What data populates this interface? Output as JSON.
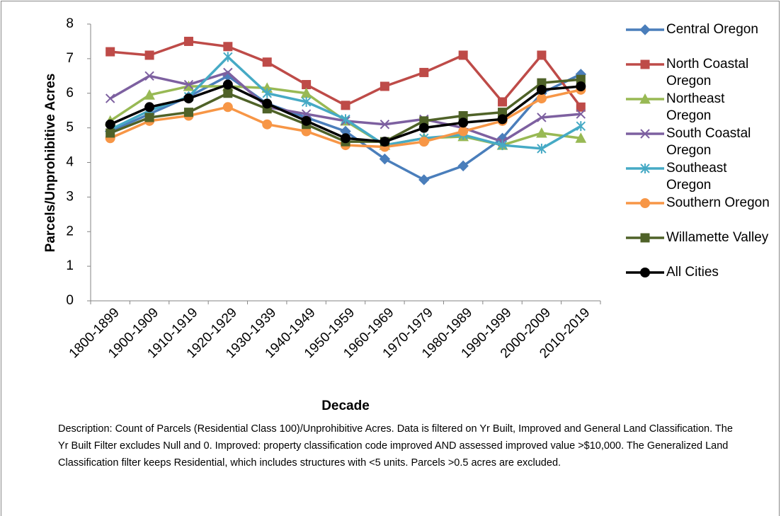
{
  "chart_data": {
    "type": "line",
    "ylabel": "Parcels/Unprohibitive Acres",
    "xlabel": "Decade",
    "note": "Description: Count of Parcels (Residential Class 100)/Unprohibitive Acres. Data is filtered on Yr Built, Improved and General Land Classification. The Yr Built Filter excludes Null and 0.  Improved: property classification code improved AND assessed improved value >$10,000.  The Generalized Land Classification filter keeps Residential, which includes structures with <5 units.  Parcels >0.5 acres are excluded.",
    "categories": [
      "1800-1899",
      "1900-1909",
      "1910-1919",
      "1920-1929",
      "1930-1939",
      "1940-1949",
      "1950-1959",
      "1960-1969",
      "1970-1979",
      "1980-1989",
      "1990-1999",
      "2000-2009",
      "2010-2019"
    ],
    "ylim": [
      0,
      8
    ],
    "yticks": [
      0,
      1,
      2,
      3,
      4,
      5,
      6,
      7,
      8
    ],
    "legend": "right",
    "series": [
      {
        "name": "Central Oregon",
        "color": "#4a7ebb",
        "marker": "diamond",
        "values": [
          4.9,
          5.4,
          5.9,
          6.5,
          5.7,
          5.3,
          4.9,
          4.1,
          3.5,
          3.9,
          4.7,
          6.0,
          6.55
        ]
      },
      {
        "name": "North Coastal Oregon",
        "color": "#be4b48",
        "marker": "square",
        "values": [
          7.2,
          7.1,
          7.5,
          7.35,
          6.9,
          6.25,
          5.65,
          6.2,
          6.6,
          7.1,
          5.75,
          7.1,
          5.6
        ]
      },
      {
        "name": "Northeast Oregon",
        "color": "#98b954",
        "marker": "triangle",
        "values": [
          5.2,
          5.95,
          6.2,
          6.2,
          6.15,
          6.0,
          5.2,
          4.5,
          4.7,
          4.75,
          4.5,
          4.85,
          4.7
        ]
      },
      {
        "name": "South Coastal Oregon",
        "color": "#7d60a0",
        "marker": "x",
        "values": [
          5.85,
          6.5,
          6.25,
          6.6,
          5.6,
          5.4,
          5.2,
          5.1,
          5.25,
          5.0,
          4.6,
          5.3,
          5.4
        ]
      },
      {
        "name": "Southeast Oregon",
        "color": "#46aac5",
        "marker": "star",
        "values": [
          4.95,
          5.5,
          5.9,
          7.05,
          6.0,
          5.75,
          5.25,
          4.5,
          4.7,
          4.8,
          4.5,
          4.4,
          5.05
        ]
      },
      {
        "name": "Southern Oregon",
        "color": "#f79646",
        "marker": "circle",
        "values": [
          4.7,
          5.2,
          5.35,
          5.6,
          5.1,
          4.9,
          4.5,
          4.45,
          4.6,
          4.9,
          5.2,
          5.85,
          6.1
        ]
      },
      {
        "name": "Willamette Valley",
        "color": "#4f6228",
        "marker": "square",
        "values": [
          4.85,
          5.3,
          5.45,
          6.0,
          5.55,
          5.1,
          4.6,
          4.6,
          5.2,
          5.35,
          5.45,
          6.3,
          6.4
        ]
      },
      {
        "name": "All Cities",
        "color": "#000000",
        "marker": "circle",
        "values": [
          5.1,
          5.6,
          5.85,
          6.25,
          5.7,
          5.2,
          4.7,
          4.6,
          5.0,
          5.15,
          5.25,
          6.1,
          6.2
        ]
      }
    ]
  }
}
